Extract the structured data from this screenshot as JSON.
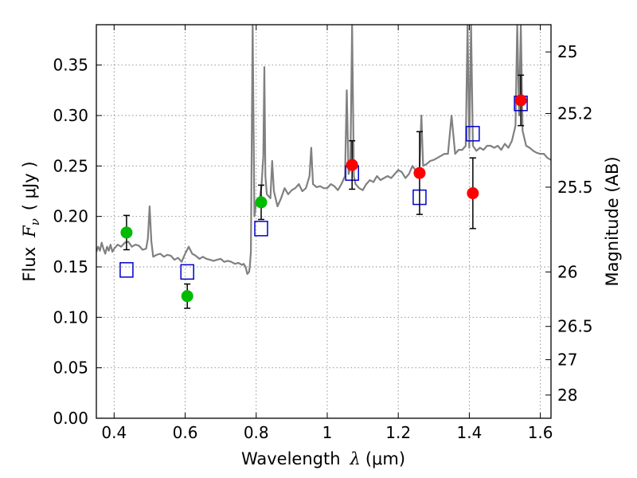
{
  "chart_data": {
    "type": "scatter",
    "xlabel_prefix": "Wavelength",
    "xlabel_symbol": "λ",
    "xlabel_unit": "(μm)",
    "ylabel_prefix": "Flux",
    "ylabel_symbol": "F",
    "ylabel_subscript": "ν",
    "ylabel_unit": "( μJy )",
    "y2label": "Magnitude (AB)",
    "xlim": [
      0.35,
      1.63
    ],
    "ylim": [
      0.0,
      0.39
    ],
    "grid": true,
    "x_ticks": [
      0.4,
      0.6,
      0.8,
      1.0,
      1.2,
      1.4,
      1.6
    ],
    "x_tick_labels": [
      "0.4",
      "0.6",
      "0.8",
      "1",
      "1.2",
      "1.4",
      "1.6"
    ],
    "y_ticks": [
      0.0,
      0.05,
      0.1,
      0.15,
      0.2,
      0.25,
      0.3,
      0.35
    ],
    "y_tick_labels": [
      "0.00",
      "0.05",
      "0.10",
      "0.15",
      "0.20",
      "0.25",
      "0.30",
      "0.35"
    ],
    "y2_ticks": [
      {
        "label": "25",
        "flux": 0.363
      },
      {
        "label": "25.2",
        "flux": 0.302
      },
      {
        "label": "25.5",
        "flux": 0.229
      },
      {
        "label": "26",
        "flux": 0.145
      },
      {
        "label": "26.5",
        "flux": 0.091
      },
      {
        "label": "27",
        "flux": 0.058
      },
      {
        "label": "28",
        "flux": 0.023
      }
    ],
    "colors": {
      "model": "#808080",
      "green": "#00bb00",
      "red": "#ff0000",
      "model_box": "#0000cc",
      "errorbar": "#000000",
      "grid": "#888888"
    },
    "series": [
      {
        "name": "observed-green",
        "marker": "circle",
        "color": "#00bb00",
        "points": [
          {
            "x": 0.435,
            "y": 0.184,
            "err": 0.017
          },
          {
            "x": 0.606,
            "y": 0.121,
            "err": 0.012
          },
          {
            "x": 0.814,
            "y": 0.214,
            "err": 0.017
          }
        ]
      },
      {
        "name": "observed-red",
        "marker": "circle",
        "color": "#ff0000",
        "points": [
          {
            "x": 1.07,
            "y": 0.251,
            "err": 0.024
          },
          {
            "x": 1.26,
            "y": 0.243,
            "err": 0.041
          },
          {
            "x": 1.41,
            "y": 0.223,
            "err": 0.035
          },
          {
            "x": 1.545,
            "y": 0.315,
            "err": 0.025
          }
        ]
      },
      {
        "name": "model-photometry",
        "marker": "square",
        "color": "#0000cc",
        "points": [
          {
            "x": 0.435,
            "y": 0.147
          },
          {
            "x": 0.606,
            "y": 0.145
          },
          {
            "x": 0.814,
            "y": 0.188
          },
          {
            "x": 1.07,
            "y": 0.243
          },
          {
            "x": 1.26,
            "y": 0.219
          },
          {
            "x": 1.41,
            "y": 0.282
          },
          {
            "x": 1.545,
            "y": 0.312
          }
        ]
      }
    ],
    "model_spectrum": {
      "name": "model-spectrum",
      "color": "#808080",
      "x": [
        0.35,
        0.355,
        0.36,
        0.365,
        0.37,
        0.375,
        0.38,
        0.385,
        0.39,
        0.395,
        0.4,
        0.41,
        0.42,
        0.43,
        0.44,
        0.45,
        0.46,
        0.47,
        0.48,
        0.49,
        0.495,
        0.5,
        0.505,
        0.51,
        0.52,
        0.53,
        0.54,
        0.55,
        0.56,
        0.57,
        0.58,
        0.59,
        0.6,
        0.61,
        0.62,
        0.63,
        0.64,
        0.65,
        0.66,
        0.67,
        0.68,
        0.69,
        0.7,
        0.71,
        0.72,
        0.73,
        0.74,
        0.75,
        0.76,
        0.765,
        0.77,
        0.775,
        0.78,
        0.782,
        0.785,
        0.79,
        0.795,
        0.8,
        0.81,
        0.815,
        0.82,
        0.823,
        0.826,
        0.83,
        0.84,
        0.845,
        0.85,
        0.86,
        0.87,
        0.88,
        0.89,
        0.9,
        0.91,
        0.92,
        0.93,
        0.94,
        0.95,
        0.955,
        0.96,
        0.97,
        0.98,
        0.99,
        1.0,
        1.01,
        1.02,
        1.03,
        1.04,
        1.05,
        1.055,
        1.06,
        1.065,
        1.07,
        1.075,
        1.08,
        1.09,
        1.1,
        1.11,
        1.12,
        1.13,
        1.14,
        1.15,
        1.16,
        1.17,
        1.18,
        1.19,
        1.2,
        1.21,
        1.22,
        1.23,
        1.24,
        1.25,
        1.26,
        1.265,
        1.27,
        1.28,
        1.29,
        1.3,
        1.31,
        1.32,
        1.33,
        1.34,
        1.35,
        1.36,
        1.37,
        1.38,
        1.39,
        1.395,
        1.4,
        1.405,
        1.41,
        1.42,
        1.43,
        1.44,
        1.45,
        1.46,
        1.47,
        1.48,
        1.49,
        1.5,
        1.51,
        1.52,
        1.53,
        1.535,
        1.54,
        1.545,
        1.55,
        1.56,
        1.57,
        1.58,
        1.59,
        1.6,
        1.61,
        1.62,
        1.63
      ],
      "y": [
        0.165,
        0.17,
        0.166,
        0.174,
        0.168,
        0.163,
        0.17,
        0.166,
        0.172,
        0.165,
        0.168,
        0.172,
        0.17,
        0.174,
        0.175,
        0.17,
        0.172,
        0.171,
        0.167,
        0.168,
        0.178,
        0.21,
        0.175,
        0.16,
        0.162,
        0.163,
        0.16,
        0.162,
        0.161,
        0.157,
        0.159,
        0.155,
        0.163,
        0.17,
        0.163,
        0.161,
        0.158,
        0.16,
        0.158,
        0.157,
        0.156,
        0.157,
        0.158,
        0.155,
        0.156,
        0.155,
        0.153,
        0.154,
        0.152,
        0.153,
        0.15,
        0.143,
        0.145,
        0.15,
        0.165,
        0.39,
        0.2,
        0.214,
        0.218,
        0.23,
        0.26,
        0.348,
        0.24,
        0.222,
        0.218,
        0.255,
        0.225,
        0.21,
        0.218,
        0.228,
        0.222,
        0.226,
        0.228,
        0.232,
        0.225,
        0.228,
        0.24,
        0.268,
        0.232,
        0.229,
        0.23,
        0.228,
        0.228,
        0.232,
        0.23,
        0.226,
        0.232,
        0.24,
        0.325,
        0.242,
        0.248,
        0.39,
        0.24,
        0.232,
        0.228,
        0.226,
        0.232,
        0.236,
        0.234,
        0.24,
        0.236,
        0.238,
        0.24,
        0.238,
        0.242,
        0.246,
        0.244,
        0.238,
        0.242,
        0.25,
        0.245,
        0.246,
        0.3,
        0.25,
        0.252,
        0.255,
        0.256,
        0.258,
        0.26,
        0.262,
        0.262,
        0.3,
        0.262,
        0.266,
        0.266,
        0.27,
        0.39,
        0.268,
        0.39,
        0.27,
        0.265,
        0.268,
        0.266,
        0.27,
        0.27,
        0.268,
        0.27,
        0.266,
        0.272,
        0.268,
        0.275,
        0.29,
        0.39,
        0.3,
        0.39,
        0.285,
        0.27,
        0.268,
        0.265,
        0.263,
        0.262,
        0.262,
        0.258,
        0.256
      ]
    }
  }
}
